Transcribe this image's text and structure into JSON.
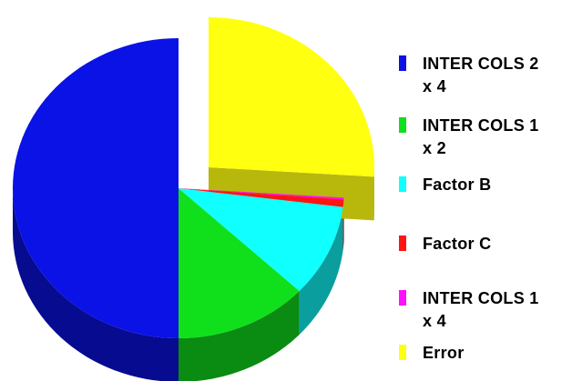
{
  "chart_data": {
    "type": "pie",
    "style": "3d-exploded",
    "slices": [
      {
        "label": "INTER COLS 2\nx 4",
        "value": 50.0,
        "color": "#0a12e6"
      },
      {
        "label": "INTER COLS 1\nx 2",
        "value": 13.0,
        "color": "#10e01c"
      },
      {
        "label": "Factor B",
        "value": 10.0,
        "color": "#10ffff"
      },
      {
        "label": "Factor C",
        "value": 0.8,
        "color": "#ff1414"
      },
      {
        "label": "INTER COLS 1\nx 4",
        "value": 0.2,
        "color": "#ff10ff"
      },
      {
        "label": "Error",
        "value": 26.0,
        "color": "#ffff10",
        "exploded": true
      }
    ],
    "legend_position": "right"
  }
}
